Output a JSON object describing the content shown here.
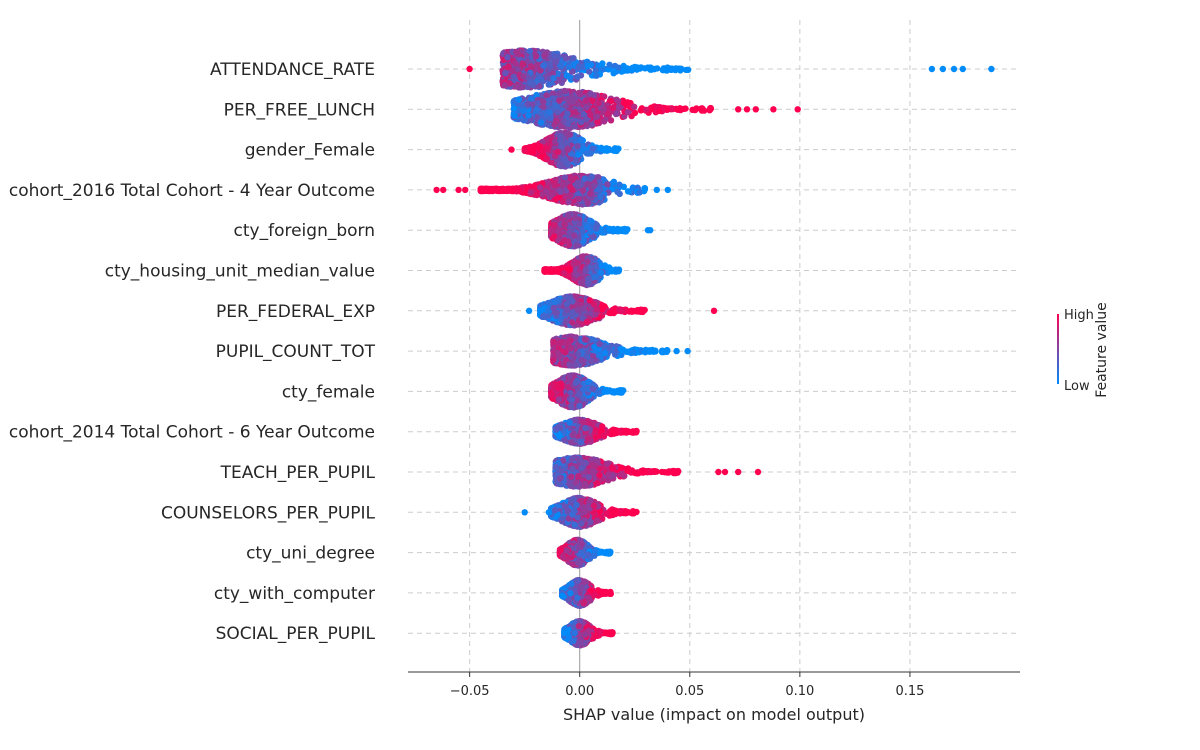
{
  "chart_data": {
    "type": "scatter",
    "subtype": "shap-beeswarm",
    "title": "",
    "xlabel": "SHAP value (impact on model output)",
    "xlim": [
      -0.078,
      0.2
    ],
    "xticks": [
      -0.05,
      0.0,
      0.05,
      0.1,
      0.15
    ],
    "xtick_labels": [
      "−0.05",
      "0.00",
      "0.05",
      "0.10",
      "0.15"
    ],
    "grid": true,
    "colors": {
      "high": "#ff0051",
      "low": "#008bfb",
      "zero_line": "#999999",
      "grid": "#cccccc"
    },
    "colorbar": {
      "title": "Feature value",
      "high_label": "High",
      "low_label": "Low"
    },
    "features": [
      {
        "name": "ATTENDANCE_RATE",
        "range": [
          -0.05,
          0.187
        ],
        "core": [
          -0.035,
          0.05
        ],
        "peak": -0.025,
        "width": 0.46,
        "dir": "neg",
        "outliers": [
          -0.05,
          0.16,
          0.165,
          0.17,
          0.174,
          0.187
        ]
      },
      {
        "name": "PER_FREE_LUNCH",
        "range": [
          -0.041,
          0.099
        ],
        "core": [
          -0.03,
          0.06
        ],
        "peak": -0.005,
        "width": 0.46,
        "dir": "pos",
        "outliers": [
          0.072,
          0.076,
          0.08,
          0.088,
          0.099
        ]
      },
      {
        "name": "gender_Female",
        "range": [
          -0.031,
          0.021
        ],
        "core": [
          -0.025,
          0.018
        ],
        "peak": -0.007,
        "width": 0.42,
        "dir": "neg",
        "outliers": [
          -0.031
        ]
      },
      {
        "name": "cohort_2016 Total Cohort - 4 Year Outcome",
        "range": [
          -0.065,
          0.04
        ],
        "core": [
          -0.045,
          0.03
        ],
        "peak": 0.001,
        "width": 0.36,
        "dir": "neg",
        "outliers": [
          -0.065,
          -0.062,
          -0.055,
          -0.052,
          0.035,
          0.04
        ]
      },
      {
        "name": "cty_foreign_born",
        "range": [
          -0.014,
          0.032
        ],
        "core": [
          -0.013,
          0.022
        ],
        "peak": -0.003,
        "width": 0.4,
        "dir": "neg",
        "outliers": [
          0.031,
          0.032
        ]
      },
      {
        "name": "cty_housing_unit_median_value",
        "range": [
          -0.017,
          0.019
        ],
        "core": [
          -0.016,
          0.018
        ],
        "peak": 0.003,
        "width": 0.36,
        "dir": "neg",
        "outliers": []
      },
      {
        "name": "PER_FEDERAL_EXP",
        "range": [
          -0.023,
          0.061
        ],
        "core": [
          -0.018,
          0.03
        ],
        "peak": -0.003,
        "width": 0.36,
        "dir": "pos",
        "outliers": [
          -0.023,
          0.061
        ]
      },
      {
        "name": "PUPIL_COUNT_TOT",
        "range": [
          -0.012,
          0.049
        ],
        "core": [
          -0.012,
          0.04
        ],
        "peak": -0.003,
        "width": 0.36,
        "dir": "neg",
        "outliers": [
          0.044,
          0.049
        ]
      },
      {
        "name": "cty_female",
        "range": [
          -0.013,
          0.022
        ],
        "core": [
          -0.013,
          0.02
        ],
        "peak": -0.003,
        "width": 0.4,
        "dir": "neg",
        "outliers": []
      },
      {
        "name": "cohort_2014 Total Cohort - 6 Year Outcome",
        "range": [
          -0.012,
          0.026
        ],
        "core": [
          -0.011,
          0.026
        ],
        "peak": 0.0,
        "width": 0.3,
        "dir": "pos",
        "outliers": []
      },
      {
        "name": "TEACH_PER_PUPIL",
        "range": [
          -0.011,
          0.081
        ],
        "core": [
          -0.011,
          0.045
        ],
        "peak": -0.001,
        "width": 0.36,
        "dir": "pos",
        "outliers": [
          0.063,
          0.066,
          0.072,
          0.081
        ]
      },
      {
        "name": "COUNSELORS_PER_PUPIL",
        "range": [
          -0.025,
          0.026
        ],
        "core": [
          -0.013,
          0.026
        ],
        "peak": 0.0,
        "width": 0.36,
        "dir": "pos",
        "outliers": [
          -0.025,
          -0.014
        ]
      },
      {
        "name": "cty_uni_degree",
        "range": [
          -0.009,
          0.014
        ],
        "core": [
          -0.009,
          0.014
        ],
        "peak": -0.001,
        "width": 0.32,
        "dir": "neg",
        "outliers": []
      },
      {
        "name": "cty_with_computer",
        "range": [
          -0.008,
          0.015
        ],
        "core": [
          -0.008,
          0.015
        ],
        "peak": 0.0,
        "width": 0.32,
        "dir": "pos",
        "outliers": []
      },
      {
        "name": "SOCIAL_PER_PUPIL",
        "range": [
          -0.007,
          0.015
        ],
        "core": [
          -0.007,
          0.015
        ],
        "peak": 0.0,
        "width": 0.3,
        "dir": "pos",
        "outliers": []
      }
    ]
  }
}
